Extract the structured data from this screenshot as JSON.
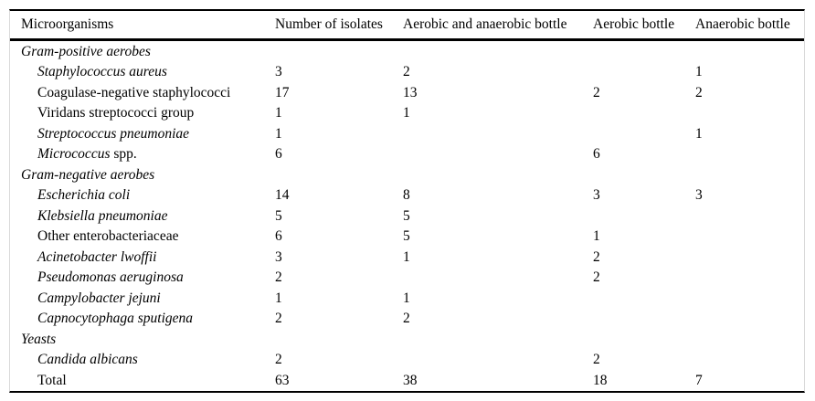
{
  "chart_data": {
    "type": "table",
    "columns": [
      "Microorganisms",
      "Number of isolates",
      "Aerobic and anaerobic bottle",
      "Aerobic bottle",
      "Anaerobic bottle"
    ],
    "rows": [
      {
        "style": "group",
        "segments": [
          {
            "t": "Gram-positive aerobes",
            "i": true
          }
        ],
        "values": [
          "",
          "",
          "",
          ""
        ]
      },
      {
        "style": "item",
        "segments": [
          {
            "t": "Staphylococcus aureus",
            "i": true
          }
        ],
        "values": [
          "3",
          "2",
          "",
          "1"
        ]
      },
      {
        "style": "item",
        "segments": [
          {
            "t": "Coagulase-negative staphylococci",
            "i": false
          }
        ],
        "values": [
          "17",
          "13",
          "2",
          "2"
        ]
      },
      {
        "style": "item",
        "segments": [
          {
            "t": "Viridans streptococci group",
            "i": false
          }
        ],
        "values": [
          "1",
          "1",
          "",
          ""
        ]
      },
      {
        "style": "item",
        "segments": [
          {
            "t": "Streptococcus pneumoniae",
            "i": true
          }
        ],
        "values": [
          "1",
          "",
          "",
          "1"
        ]
      },
      {
        "style": "item",
        "segments": [
          {
            "t": "Micrococcus",
            "i": true
          },
          {
            "t": " spp.",
            "i": false
          }
        ],
        "values": [
          "6",
          "",
          "6",
          ""
        ]
      },
      {
        "style": "group",
        "segments": [
          {
            "t": "Gram-negative aerobes",
            "i": true
          }
        ],
        "values": [
          "",
          "",
          "",
          ""
        ]
      },
      {
        "style": "item",
        "segments": [
          {
            "t": "Escherichia coli",
            "i": true
          }
        ],
        "values": [
          "14",
          "8",
          "3",
          "3"
        ]
      },
      {
        "style": "item",
        "segments": [
          {
            "t": "Klebsiella pneumoniae",
            "i": true
          }
        ],
        "values": [
          "5",
          "5",
          "",
          ""
        ]
      },
      {
        "style": "item",
        "segments": [
          {
            "t": "Other enterobacteriaceae",
            "i": false
          }
        ],
        "values": [
          "6",
          "5",
          "1",
          ""
        ]
      },
      {
        "style": "item",
        "segments": [
          {
            "t": "Acinetobacter lwoffii",
            "i": true
          }
        ],
        "values": [
          "3",
          "1",
          "2",
          ""
        ]
      },
      {
        "style": "item",
        "segments": [
          {
            "t": "Pseudomonas aeruginosa",
            "i": true
          }
        ],
        "values": [
          "2",
          "",
          "2",
          ""
        ]
      },
      {
        "style": "item",
        "segments": [
          {
            "t": "Campylobacter jejuni",
            "i": true
          }
        ],
        "values": [
          "1",
          "1",
          "",
          ""
        ]
      },
      {
        "style": "item",
        "segments": [
          {
            "t": "Capnocytophaga sputigena",
            "i": true
          }
        ],
        "values": [
          "2",
          "2",
          "",
          ""
        ]
      },
      {
        "style": "group",
        "segments": [
          {
            "t": "Yeasts",
            "i": true
          }
        ],
        "values": [
          "",
          "",
          "",
          ""
        ]
      },
      {
        "style": "item",
        "segments": [
          {
            "t": "Candida albicans",
            "i": true
          }
        ],
        "values": [
          "2",
          "",
          "2",
          ""
        ]
      },
      {
        "style": "item",
        "segments": [
          {
            "t": "Total",
            "i": false
          }
        ],
        "values": [
          "63",
          "38",
          "18",
          "7"
        ]
      }
    ]
  },
  "colors": {
    "rule": "#000000",
    "frame_side": "#d9d9d9",
    "text": "#000000",
    "background": "#ffffff"
  }
}
